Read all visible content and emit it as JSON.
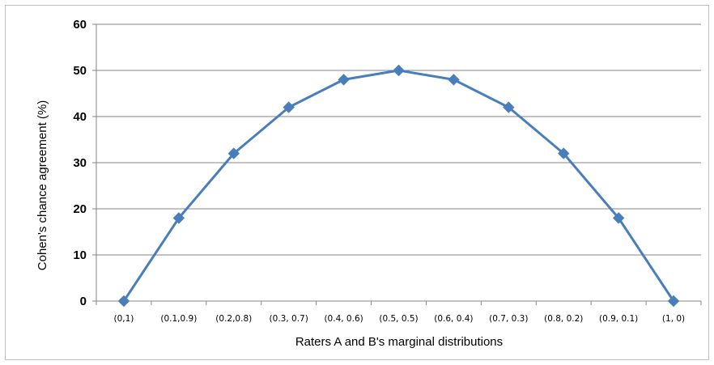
{
  "chart_data": {
    "type": "line",
    "title": "",
    "xlabel": "Raters A and B's marginal distributions",
    "ylabel": "Cohen's chance agreement (%)",
    "categories": [
      "(0,1)",
      "(0.1,0.9)",
      "(0.2,0.8)",
      "(0.3, 0.7)",
      "(0.4, 0.6)",
      "(0.5, 0.5)",
      "(0.6, 0.4)",
      "(0.7, 0.3)",
      "(0.8, 0.2)",
      "(0.9, 0.1)",
      "(1, 0)"
    ],
    "series": [
      {
        "values": [
          0,
          18,
          32,
          42,
          48,
          50,
          48,
          42,
          32,
          18,
          0
        ]
      }
    ],
    "ylim": [
      0,
      60
    ],
    "yticks": [
      0,
      10,
      20,
      30,
      40,
      50,
      60
    ],
    "grid": true,
    "legend": "none",
    "series_color": "#4a7ebb",
    "grid_color": "#868686"
  }
}
